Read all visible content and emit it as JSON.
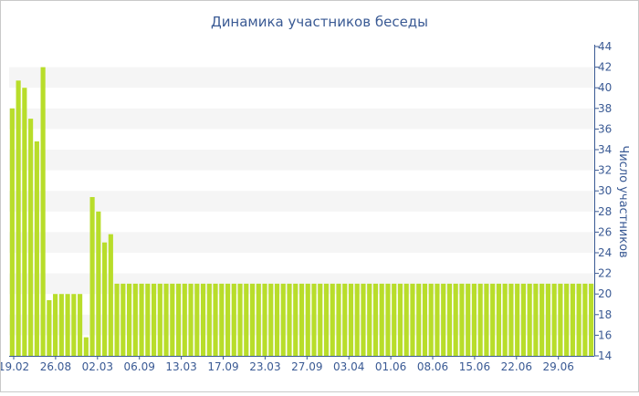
{
  "colors": {
    "bar": "#b8dd2a",
    "text": "#3a5a94",
    "band": "#f5f5f5",
    "axis": "#3a5a94"
  },
  "chart_data": {
    "type": "bar",
    "title": "Динамика участников беседы",
    "ylabel": "Число участников",
    "xlabel": "",
    "ylim": [
      14,
      44
    ],
    "ytick_step": 2,
    "grid": "alternating horizontal bands",
    "legend": "none",
    "xtick_labels": [
      "19.02",
      "26.08",
      "02.03",
      "06.09",
      "13.03",
      "17.09",
      "23.03",
      "27.09",
      "03.04",
      "01.06",
      "08.06",
      "15.06",
      "22.06",
      "29.06"
    ],
    "values": [
      38,
      40.7,
      40,
      37,
      34.8,
      42,
      19.4,
      20,
      20,
      20,
      20,
      20,
      15.8,
      29.4,
      28,
      25,
      25.8,
      21,
      21,
      21,
      21,
      21,
      21,
      21,
      21,
      21,
      21,
      21,
      21,
      21,
      21,
      21,
      21,
      21,
      21,
      21,
      21,
      21,
      21,
      21,
      21,
      21,
      21,
      21,
      21,
      21,
      21,
      21,
      21,
      21,
      21,
      21,
      21,
      21,
      21,
      21,
      21,
      21,
      21,
      21,
      21,
      21,
      21,
      21,
      21,
      21,
      21,
      21,
      21,
      21,
      21,
      21,
      21,
      21,
      21,
      21,
      21,
      21,
      21,
      21,
      21,
      21,
      21,
      21,
      21,
      21,
      21,
      21,
      21,
      21,
      21,
      21,
      21,
      21,
      21
    ]
  }
}
